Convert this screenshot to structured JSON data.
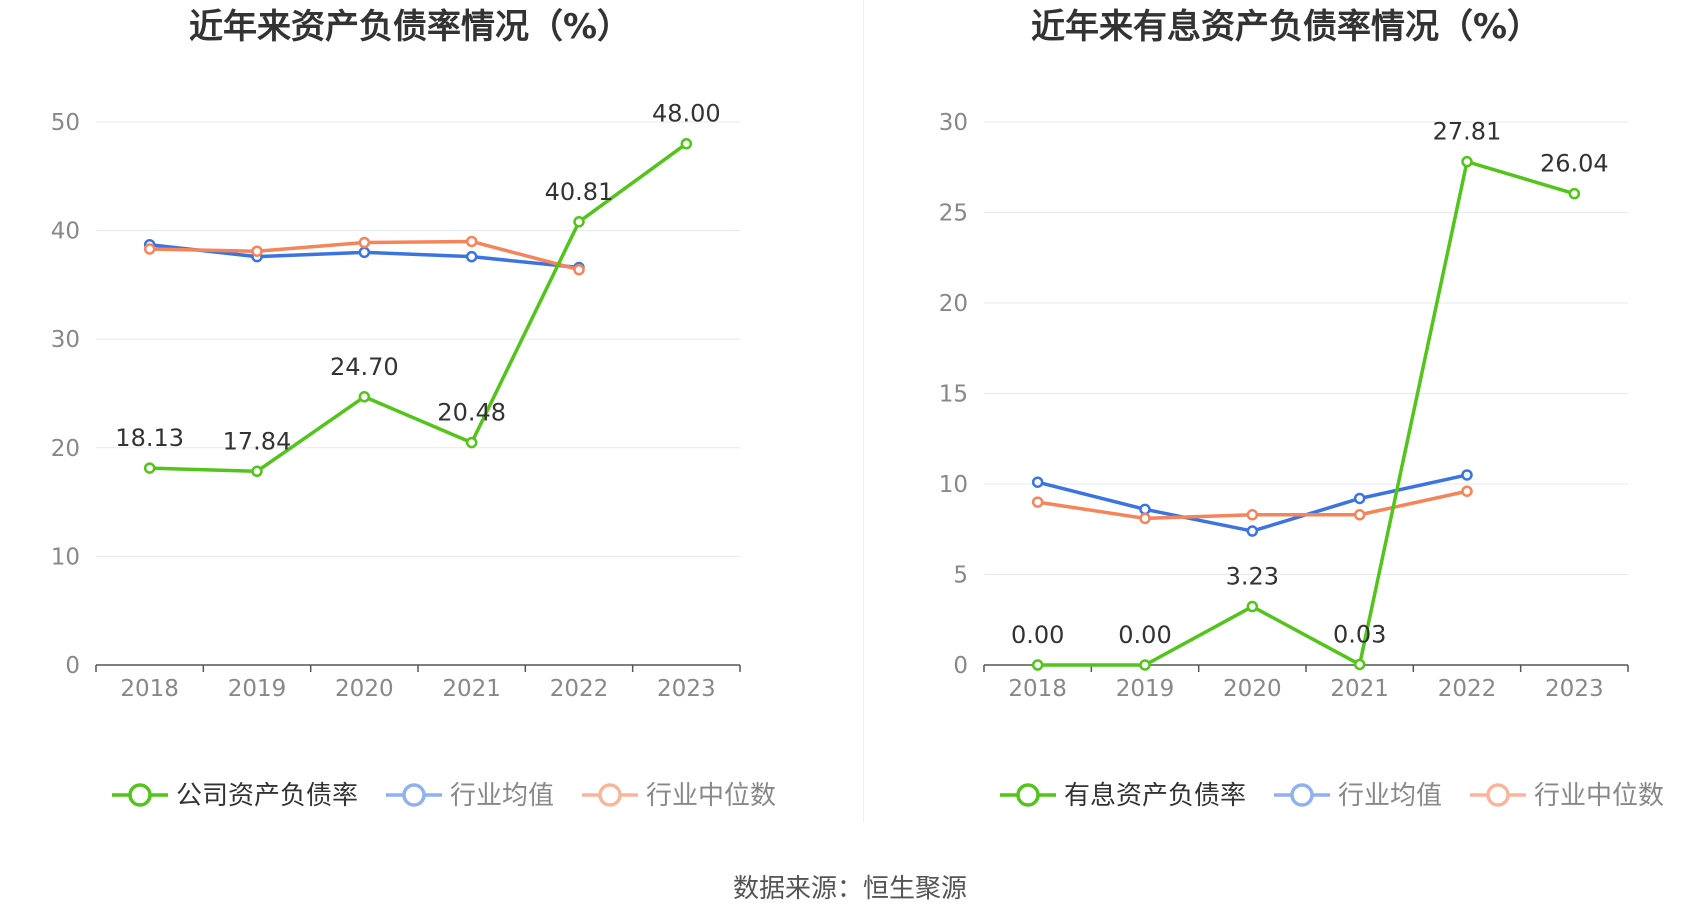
{
  "source_label": "数据来源：恒生聚源",
  "chart_data": [
    {
      "type": "line",
      "title": "近年来资产负债率情况（%）",
      "categories": [
        "2018",
        "2019",
        "2020",
        "2021",
        "2022",
        "2023"
      ],
      "ylim": [
        0,
        50
      ],
      "yticks": [
        0,
        10,
        20,
        30,
        40,
        50
      ],
      "grid": true,
      "legend_position": "bottom",
      "series": [
        {
          "name": "公司资产负债率",
          "color": "#52c41a",
          "values": [
            18.13,
            17.84,
            24.7,
            20.48,
            40.81,
            48.0
          ],
          "labels": [
            "18.13",
            "17.84",
            "24.70",
            "20.48",
            "40.81",
            "48.00"
          ]
        },
        {
          "name": "行业均值",
          "color": "#3b74e0",
          "legend_color": "#8fb1ef",
          "values": [
            38.7,
            37.6,
            38.0,
            37.6,
            36.6,
            null
          ]
        },
        {
          "name": "行业中位数",
          "color": "#f5845a",
          "legend_color": "#f8b59c",
          "values": [
            38.3,
            38.1,
            38.9,
            39.0,
            36.4,
            null
          ]
        }
      ]
    },
    {
      "type": "line",
      "title": "近年来有息资产负债率情况（%）",
      "categories": [
        "2018",
        "2019",
        "2020",
        "2021",
        "2022",
        "2023"
      ],
      "ylim": [
        0,
        30
      ],
      "yticks": [
        0,
        5,
        10,
        15,
        20,
        25,
        30
      ],
      "grid": true,
      "legend_position": "bottom",
      "series": [
        {
          "name": "有息资产负债率",
          "color": "#52c41a",
          "values": [
            0.0,
            0.0,
            3.23,
            0.03,
            27.81,
            26.04
          ],
          "labels": [
            "0.00",
            "0.00",
            "3.23",
            "0.03",
            "27.81",
            "26.04"
          ]
        },
        {
          "name": "行业均值",
          "color": "#3b74e0",
          "legend_color": "#8fb1ef",
          "values": [
            10.1,
            8.6,
            7.4,
            9.2,
            10.5,
            null
          ]
        },
        {
          "name": "行业中位数",
          "color": "#f5845a",
          "legend_color": "#f8b59c",
          "values": [
            9.0,
            8.1,
            8.3,
            8.3,
            9.6,
            null
          ]
        }
      ]
    }
  ]
}
